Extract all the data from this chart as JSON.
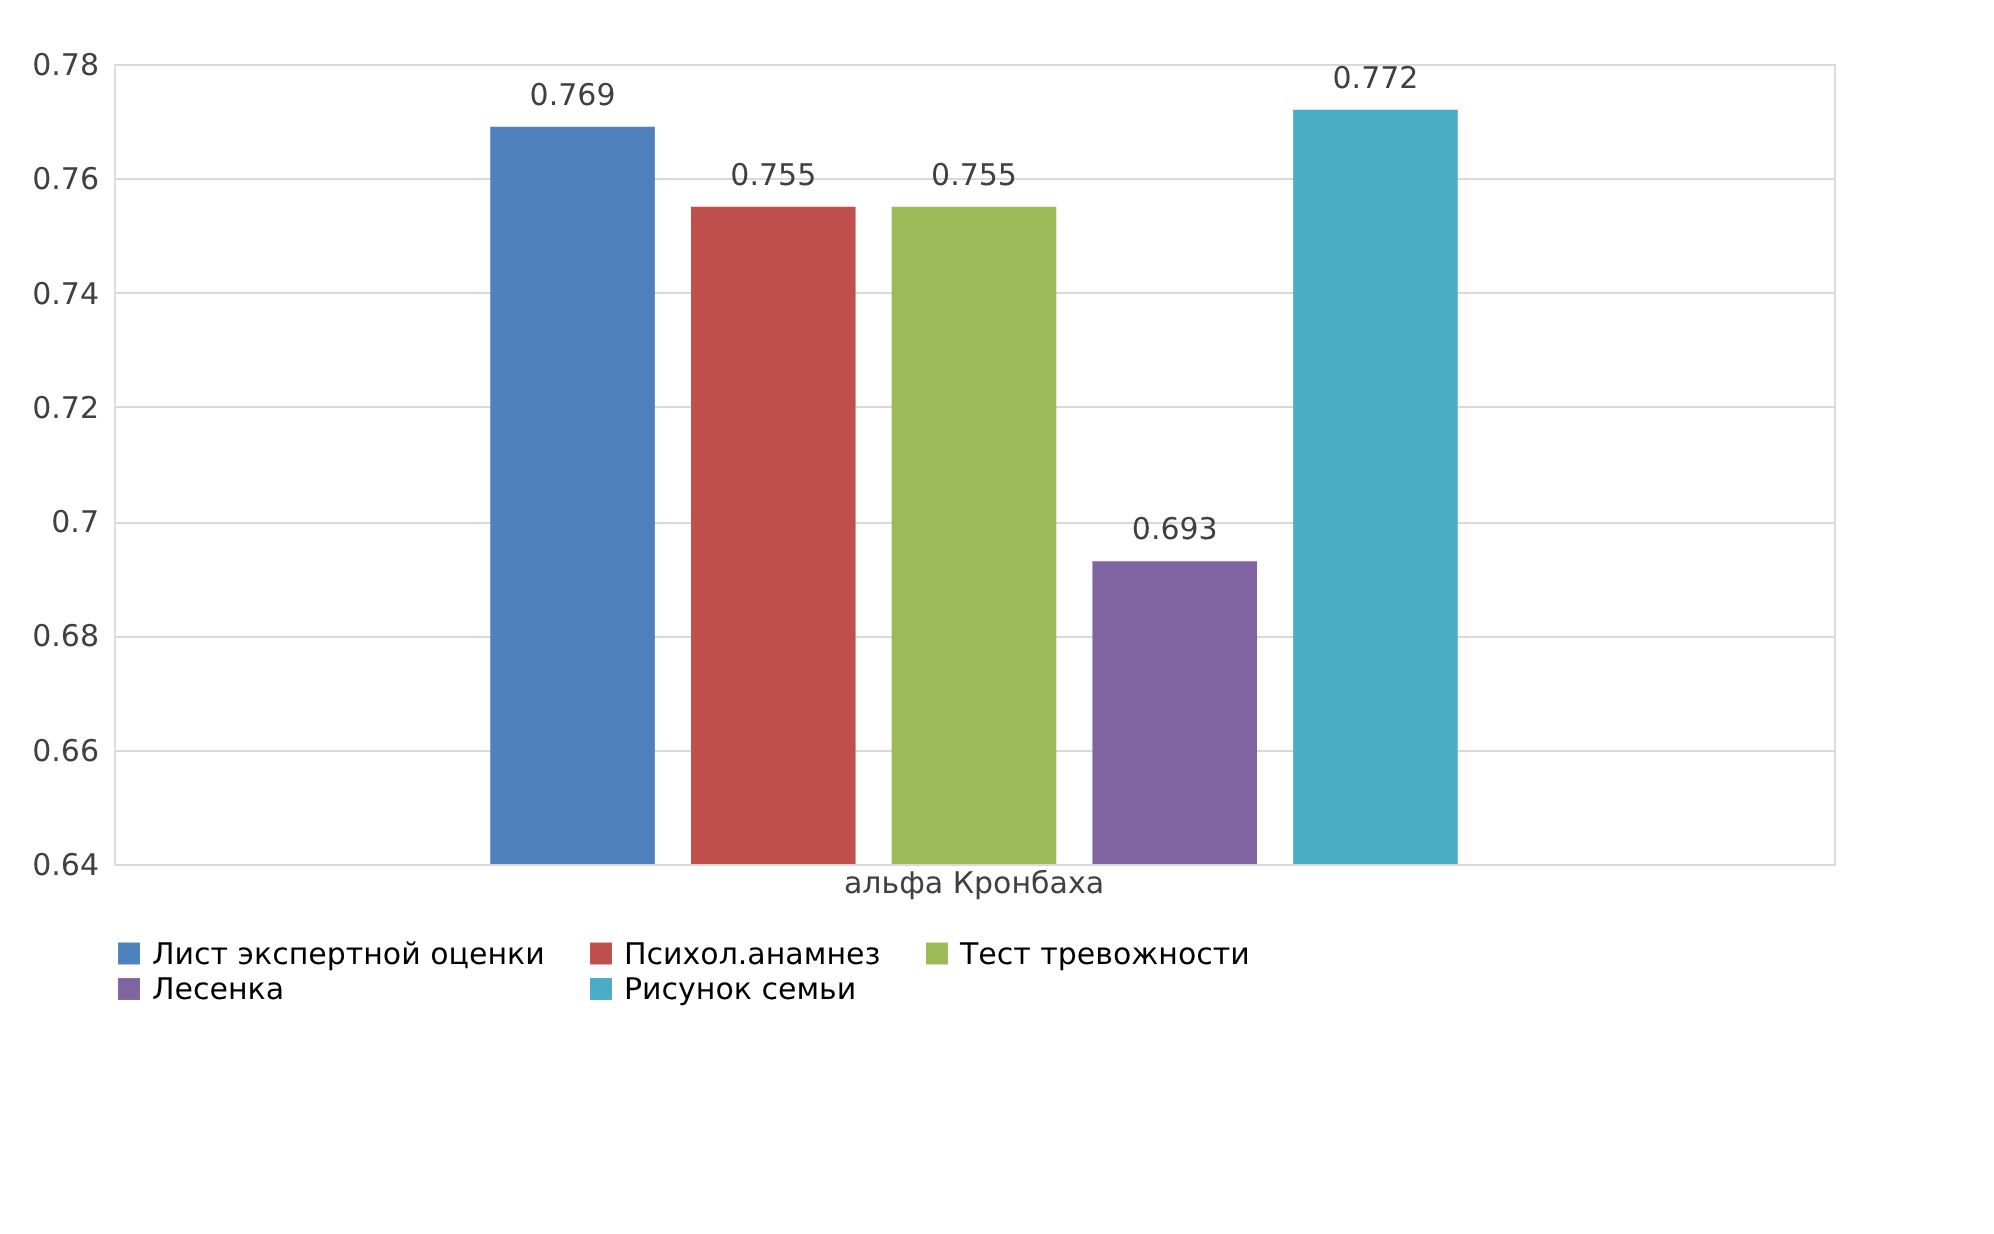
{
  "chart_data": {
    "type": "bar",
    "categories": [
      "альфа Кронбаха"
    ],
    "series": [
      {
        "name": "Лист экспертной оценки",
        "color": "#4f81bd",
        "values": [
          0.769
        ]
      },
      {
        "name": "Психол.анамнез",
        "color": "#c0504d",
        "values": [
          0.755
        ]
      },
      {
        "name": "Тест тревожности",
        "color": "#9bbb59",
        "values": [
          0.755
        ]
      },
      {
        "name": "Лесенка",
        "color": "#8064a2",
        "values": [
          0.693
        ]
      },
      {
        "name": "Рисунок семьи",
        "color": "#4bacc6",
        "values": [
          0.772
        ]
      }
    ],
    "ylim": [
      0.64,
      0.78
    ],
    "yticks": [
      0.64,
      0.66,
      0.68,
      0.7,
      0.72,
      0.74,
      0.76,
      0.78
    ],
    "grid": "y",
    "legend": "bottom",
    "data_labels": true
  }
}
